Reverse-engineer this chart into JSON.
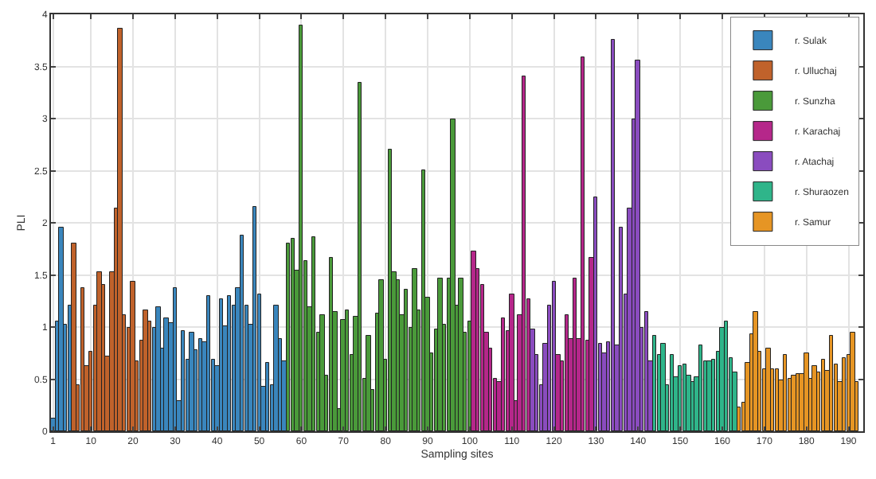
{
  "chart_data": {
    "type": "bar",
    "xlabel": "Sampling sites",
    "ylabel": "PLI",
    "xlim": [
      0.5,
      193.5
    ],
    "xticks": [
      1,
      10,
      20,
      30,
      40,
      50,
      60,
      70,
      80,
      90,
      100,
      110,
      120,
      130,
      140,
      150,
      160,
      170,
      180,
      190
    ],
    "ylim": [
      0,
      4
    ],
    "yticks": [
      0,
      0.5,
      1,
      1.5,
      2,
      2.5,
      3,
      3.5,
      4
    ],
    "grid": true,
    "legend": "top right",
    "series": [
      {
        "name": "r. Sulak",
        "color": "#3a86bd",
        "x": [
          1,
          2,
          3,
          4,
          5,
          25,
          26,
          27,
          28,
          29,
          30,
          31,
          32,
          33,
          34,
          35,
          36,
          37,
          38,
          39,
          40,
          41,
          42,
          43,
          44,
          45,
          46,
          47,
          48,
          49,
          50,
          51,
          52,
          53,
          54,
          55,
          56
        ],
        "values": [
          0.12,
          1.05,
          1.95,
          1.02,
          1.2,
          0.99,
          1.19,
          0.8,
          1.08,
          1.04,
          1.38,
          0.29,
          0.96,
          0.69,
          0.94,
          0.78,
          0.89,
          0.85,
          1.3,
          0.69,
          0.62,
          1.26,
          1.01,
          1.3,
          1.2,
          1.38,
          1.88,
          1.21,
          1.02,
          2.16,
          1.31,
          0.42,
          0.66,
          0.44,
          1.21,
          0.88,
          0.67
        ]
      },
      {
        "name": "r. Ulluchaj",
        "color": "#c0622b",
        "x": [
          6,
          7,
          8,
          9,
          10,
          11,
          12,
          13,
          14,
          15,
          16,
          17,
          18,
          19,
          20,
          21,
          22,
          23,
          24
        ],
        "values": [
          1.8,
          0.45,
          1.38,
          0.63,
          0.77,
          1.2,
          1.53,
          1.4,
          0.72,
          1.53,
          2.13,
          3.87,
          1.12,
          1.0,
          1.43,
          0.67,
          0.87,
          1.16,
          1.05
        ]
      },
      {
        "name": "r. Sunzha",
        "color": "#4a9a3a",
        "x": [
          57,
          58,
          59,
          60,
          61,
          62,
          63,
          64,
          65,
          66,
          67,
          68,
          69,
          70,
          71,
          72,
          73,
          74,
          75,
          76,
          77,
          78,
          79,
          80,
          81,
          82,
          83,
          84,
          85,
          86,
          87,
          88,
          89,
          90,
          91,
          92,
          93,
          94,
          95,
          96,
          97,
          98,
          99,
          100
        ],
        "values": [
          1.8,
          1.84,
          1.54,
          3.9,
          1.63,
          1.19,
          1.86,
          0.95,
          1.12,
          0.54,
          1.66,
          1.14,
          0.22,
          1.07,
          1.16,
          0.74,
          1.1,
          3.35,
          0.51,
          0.91,
          0.39,
          1.13,
          1.45,
          0.68,
          2.71,
          1.52,
          1.45,
          1.11,
          1.36,
          0.99,
          1.56,
          1.16,
          2.5,
          1.28,
          0.75,
          0.97,
          1.46,
          1.02,
          1.47,
          2.99,
          1.2,
          1.46,
          0.94,
          1.05
        ]
      },
      {
        "name": "r. Karachaj",
        "color": "#b5278a",
        "x": [
          101,
          102,
          103,
          104,
          105,
          106,
          107,
          108,
          109,
          110,
          111,
          112,
          113,
          114,
          121,
          122,
          123,
          124,
          125,
          126,
          127,
          128,
          129
        ],
        "values": [
          1.72,
          1.56,
          1.4,
          0.94,
          0.8,
          0.51,
          0.48,
          1.09,
          0.96,
          1.32,
          0.29,
          1.11,
          3.41,
          1.26,
          0.73,
          0.67,
          1.12,
          0.88,
          1.47,
          0.89,
          3.59,
          0.87,
          1.67
        ]
      },
      {
        "name": "r. Atachaj",
        "color": "#8a4cbf",
        "x": [
          115,
          116,
          117,
          118,
          119,
          120,
          130,
          131,
          132,
          133,
          134,
          135,
          136,
          137,
          138,
          139,
          140,
          141,
          142,
          143
        ],
        "values": [
          0.98,
          0.74,
          0.44,
          0.84,
          1.2,
          1.44,
          2.25,
          0.84,
          0.75,
          0.85,
          3.75,
          0.83,
          1.96,
          1.31,
          2.13,
          2.99,
          3.55,
          0.99,
          1.14,
          0.67
        ]
      },
      {
        "name": "r. Shuraozen",
        "color": "#2fb58a",
        "x": [
          144,
          145,
          146,
          147,
          148,
          149,
          150,
          151,
          152,
          153,
          154,
          155,
          156,
          157,
          158,
          159,
          160,
          161,
          162,
          163
        ],
        "values": [
          0.92,
          0.73,
          0.84,
          0.44,
          0.74,
          0.52,
          0.62,
          0.64,
          0.53,
          0.48,
          0.52,
          0.83,
          0.67,
          0.67,
          0.69,
          0.76,
          0.99,
          1.05,
          0.71,
          0.57
        ]
      },
      {
        "name": "r. Samur",
        "color": "#e69524",
        "x": [
          164,
          165,
          166,
          167,
          168,
          169,
          170,
          171,
          172,
          173,
          174,
          175,
          176,
          177,
          178,
          179,
          180,
          181,
          182,
          183,
          184,
          185,
          186,
          187,
          188,
          189,
          190,
          191,
          192
        ],
        "values": [
          0.23,
          0.27,
          0.66,
          0.93,
          1.15,
          0.76,
          0.6,
          0.8,
          0.59,
          0.6,
          0.49,
          0.74,
          0.51,
          0.54,
          0.55,
          0.55,
          0.75,
          0.5,
          0.62,
          0.57,
          0.68,
          0.58,
          0.92,
          0.64,
          0.47,
          0.71,
          0.74,
          0.94,
          0.48
        ]
      }
    ]
  }
}
